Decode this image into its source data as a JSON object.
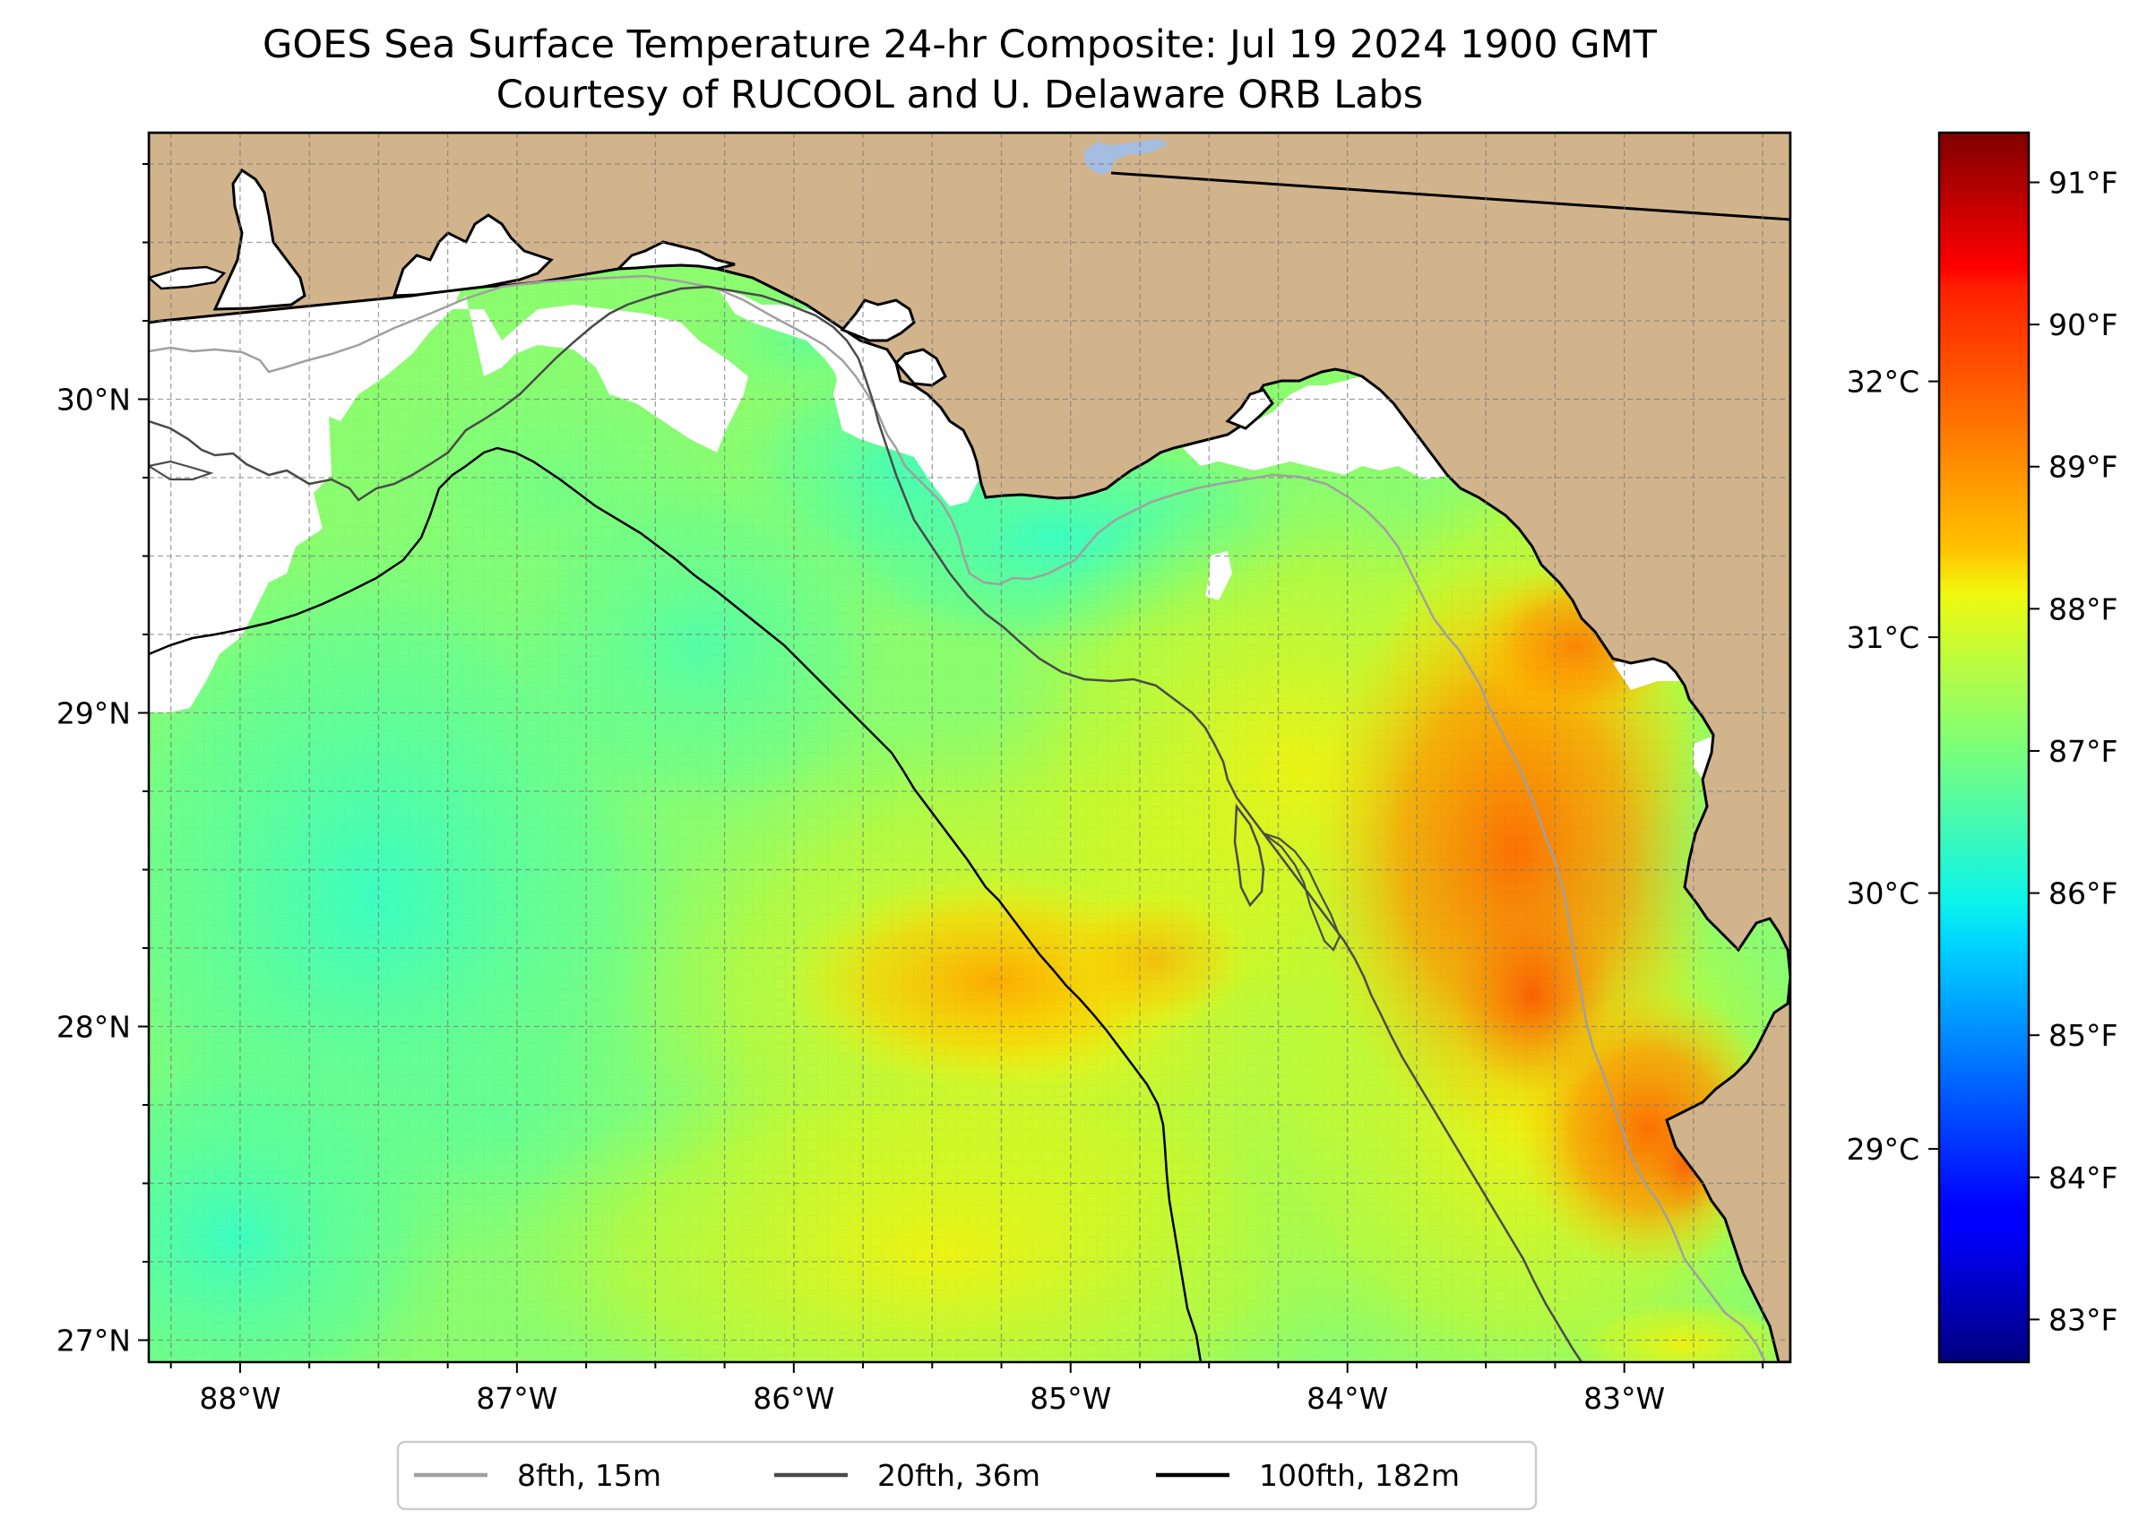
{
  "title": {
    "line1": "GOES Sea Surface Temperature 24-hr Composite: Jul 19 2024 1900 GMT",
    "line2": "Courtesy of RUCOOL and U. Delaware ORB Labs"
  },
  "map": {
    "lon_range": [
      -88.33,
      -82.4
    ],
    "lat_range": [
      26.93,
      30.85
    ],
    "lon_ticks": [
      {
        "value": -88,
        "label": "88°W"
      },
      {
        "value": -87,
        "label": "87°W"
      },
      {
        "value": -86,
        "label": "86°W"
      },
      {
        "value": -85,
        "label": "85°W"
      },
      {
        "value": -84,
        "label": "84°W"
      },
      {
        "value": -83,
        "label": "83°W"
      }
    ],
    "lat_ticks": [
      {
        "value": 30,
        "label": "30°N"
      },
      {
        "value": 29,
        "label": "29°N"
      },
      {
        "value": 28,
        "label": "28°N"
      },
      {
        "value": 27,
        "label": "27°N"
      }
    ],
    "grid": "dashed, every 0.25°",
    "colors": {
      "land": "#d2b48c",
      "no_data": "#ffffff",
      "lake": "#a4bde0"
    }
  },
  "colorbar": {
    "colormap": "jet",
    "range_f": [
      82.7,
      91.35
    ],
    "f_ticks": [
      {
        "value": 83,
        "label": "83°F"
      },
      {
        "value": 84,
        "label": "84°F"
      },
      {
        "value": 85,
        "label": "85°F"
      },
      {
        "value": 86,
        "label": "86°F"
      },
      {
        "value": 87,
        "label": "87°F"
      },
      {
        "value": 88,
        "label": "88°F"
      },
      {
        "value": 89,
        "label": "89°F"
      },
      {
        "value": 90,
        "label": "90°F"
      },
      {
        "value": 91,
        "label": "91°F"
      }
    ],
    "c_ticks": [
      {
        "value": 29,
        "label": "29°C"
      },
      {
        "value": 30,
        "label": "30°C"
      },
      {
        "value": 31,
        "label": "31°C"
      },
      {
        "value": 32,
        "label": "32°C"
      }
    ]
  },
  "legend": [
    {
      "label": "8fth, 15m",
      "color": "#a0a0a0"
    },
    {
      "label": "20fth, 36m",
      "color": "#4a4a4a"
    },
    {
      "label": "100fth, 182m",
      "color": "#000000"
    }
  ]
}
